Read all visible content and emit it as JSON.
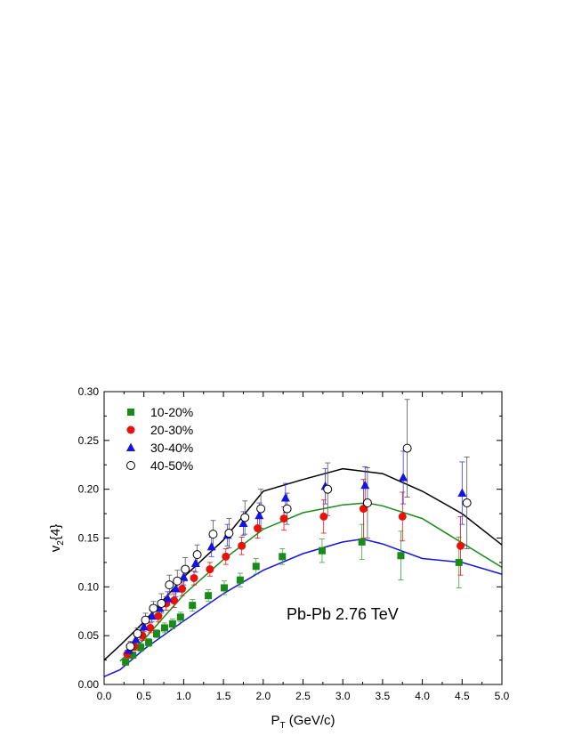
{
  "chart_data": {
    "type": "scatter",
    "title": "",
    "xlabel": {
      "main": "P",
      "sub": "T",
      "rest": " (GeV/c)"
    },
    "ylabel": {
      "main": "v",
      "sub": "2",
      "rest": "{4}"
    },
    "xlim": [
      0.0,
      5.0
    ],
    "ylim": [
      0.0,
      0.3
    ],
    "xticks": [
      "0.0",
      "0.5",
      "1.0",
      "1.5",
      "2.0",
      "2.5",
      "3.0",
      "3.5",
      "4.0",
      "4.5",
      "5.0"
    ],
    "yticks": [
      "0.00",
      "0.05",
      "0.10",
      "0.15",
      "0.20",
      "0.25",
      "0.30"
    ],
    "grid": false,
    "legend_position": "top-left",
    "annotation": "Pb-Pb   2.76 TeV",
    "series": [
      {
        "name": "10-20%",
        "marker": "square",
        "color": "#1a8a1a",
        "error_color": "#3aa63a",
        "points": [
          {
            "x": 0.27,
            "y": 0.023,
            "err": 0.003
          },
          {
            "x": 0.36,
            "y": 0.03,
            "err": 0.003
          },
          {
            "x": 0.46,
            "y": 0.038,
            "err": 0.004
          },
          {
            "x": 0.56,
            "y": 0.043,
            "err": 0.004
          },
          {
            "x": 0.66,
            "y": 0.052,
            "err": 0.004
          },
          {
            "x": 0.76,
            "y": 0.058,
            "err": 0.005
          },
          {
            "x": 0.86,
            "y": 0.062,
            "err": 0.005
          },
          {
            "x": 0.96,
            "y": 0.069,
            "err": 0.005
          },
          {
            "x": 1.11,
            "y": 0.081,
            "err": 0.006
          },
          {
            "x": 1.31,
            "y": 0.091,
            "err": 0.006
          },
          {
            "x": 1.51,
            "y": 0.099,
            "err": 0.007
          },
          {
            "x": 1.71,
            "y": 0.107,
            "err": 0.007
          },
          {
            "x": 1.91,
            "y": 0.121,
            "err": 0.008
          },
          {
            "x": 2.24,
            "y": 0.131,
            "err": 0.008
          },
          {
            "x": 2.74,
            "y": 0.137,
            "err": 0.012
          },
          {
            "x": 3.24,
            "y": 0.146,
            "err": 0.018
          },
          {
            "x": 3.73,
            "y": 0.132,
            "err": 0.025
          },
          {
            "x": 4.46,
            "y": 0.125,
            "err": 0.026
          }
        ]
      },
      {
        "name": "20-30%",
        "marker": "circle",
        "color": "#e8120c",
        "error_color": "#e8120c",
        "points": [
          {
            "x": 0.29,
            "y": 0.031,
            "err": 0.004
          },
          {
            "x": 0.38,
            "y": 0.039,
            "err": 0.004
          },
          {
            "x": 0.48,
            "y": 0.05,
            "err": 0.005
          },
          {
            "x": 0.58,
            "y": 0.058,
            "err": 0.005
          },
          {
            "x": 0.68,
            "y": 0.07,
            "err": 0.006
          },
          {
            "x": 0.78,
            "y": 0.083,
            "err": 0.007
          },
          {
            "x": 0.88,
            "y": 0.086,
            "err": 0.007
          },
          {
            "x": 0.98,
            "y": 0.098,
            "err": 0.007
          },
          {
            "x": 1.13,
            "y": 0.109,
            "err": 0.007
          },
          {
            "x": 1.33,
            "y": 0.118,
            "err": 0.007
          },
          {
            "x": 1.53,
            "y": 0.131,
            "err": 0.008
          },
          {
            "x": 1.73,
            "y": 0.142,
            "err": 0.009
          },
          {
            "x": 1.93,
            "y": 0.16,
            "err": 0.01
          },
          {
            "x": 2.26,
            "y": 0.17,
            "err": 0.012
          },
          {
            "x": 2.76,
            "y": 0.172,
            "err": 0.017
          },
          {
            "x": 3.26,
            "y": 0.18,
            "err": 0.03
          },
          {
            "x": 3.75,
            "y": 0.172,
            "err": 0.025
          },
          {
            "x": 4.48,
            "y": 0.142,
            "err": 0.03
          }
        ]
      },
      {
        "name": "30-40%",
        "marker": "triangle",
        "color": "#1414e6",
        "error_color": "#3a3ae6",
        "points": [
          {
            "x": 0.31,
            "y": 0.035,
            "err": 0.004
          },
          {
            "x": 0.4,
            "y": 0.046,
            "err": 0.005
          },
          {
            "x": 0.5,
            "y": 0.059,
            "err": 0.005
          },
          {
            "x": 0.6,
            "y": 0.07,
            "err": 0.006
          },
          {
            "x": 0.7,
            "y": 0.078,
            "err": 0.007
          },
          {
            "x": 0.8,
            "y": 0.088,
            "err": 0.007
          },
          {
            "x": 0.9,
            "y": 0.098,
            "err": 0.008
          },
          {
            "x": 1.0,
            "y": 0.11,
            "err": 0.008
          },
          {
            "x": 1.15,
            "y": 0.124,
            "err": 0.009
          },
          {
            "x": 1.35,
            "y": 0.141,
            "err": 0.01
          },
          {
            "x": 1.55,
            "y": 0.153,
            "err": 0.011
          },
          {
            "x": 1.75,
            "y": 0.165,
            "err": 0.012
          },
          {
            "x": 1.95,
            "y": 0.173,
            "err": 0.013
          },
          {
            "x": 2.28,
            "y": 0.191,
            "err": 0.015
          },
          {
            "x": 2.78,
            "y": 0.203,
            "err": 0.018
          },
          {
            "x": 3.28,
            "y": 0.204,
            "err": 0.019
          },
          {
            "x": 3.76,
            "y": 0.212,
            "err": 0.027
          },
          {
            "x": 4.5,
            "y": 0.196,
            "err": 0.032
          }
        ]
      },
      {
        "name": "40-50%",
        "marker": "open-circle",
        "color": "#000000",
        "error_color": "#555555",
        "points": [
          {
            "x": 0.33,
            "y": 0.039,
            "err": 0.005
          },
          {
            "x": 0.42,
            "y": 0.052,
            "err": 0.006
          },
          {
            "x": 0.52,
            "y": 0.066,
            "err": 0.007
          },
          {
            "x": 0.62,
            "y": 0.078,
            "err": 0.007
          },
          {
            "x": 0.72,
            "y": 0.083,
            "err": 0.01
          },
          {
            "x": 0.82,
            "y": 0.102,
            "err": 0.01
          },
          {
            "x": 0.92,
            "y": 0.106,
            "err": 0.011
          },
          {
            "x": 1.02,
            "y": 0.118,
            "err": 0.012
          },
          {
            "x": 1.17,
            "y": 0.133,
            "err": 0.01
          },
          {
            "x": 1.37,
            "y": 0.154,
            "err": 0.014
          },
          {
            "x": 1.57,
            "y": 0.155,
            "err": 0.015
          },
          {
            "x": 1.77,
            "y": 0.171,
            "err": 0.017
          },
          {
            "x": 1.97,
            "y": 0.18,
            "err": 0.02
          },
          {
            "x": 2.3,
            "y": 0.18,
            "err": 0.016
          },
          {
            "x": 2.81,
            "y": 0.2,
            "err": 0.027
          },
          {
            "x": 3.31,
            "y": 0.186,
            "err": 0.036
          },
          {
            "x": 3.81,
            "y": 0.242,
            "err": 0.05
          },
          {
            "x": 4.56,
            "y": 0.186,
            "err": 0.047
          }
        ]
      }
    ],
    "curves": [
      {
        "color": "#1414e6",
        "points": [
          [
            0.0,
            0.008
          ],
          [
            0.2,
            0.015
          ],
          [
            0.5,
            0.036
          ],
          [
            1.0,
            0.065
          ],
          [
            1.5,
            0.093
          ],
          [
            2.0,
            0.117
          ],
          [
            2.5,
            0.134
          ],
          [
            3.0,
            0.146
          ],
          [
            3.25,
            0.149
          ],
          [
            3.5,
            0.144
          ],
          [
            4.0,
            0.129
          ],
          [
            4.5,
            0.125
          ],
          [
            5.0,
            0.113
          ]
        ]
      },
      {
        "color": "#1a8a1a",
        "points": [
          [
            0.2,
            0.024
          ],
          [
            0.5,
            0.046
          ],
          [
            1.0,
            0.092
          ],
          [
            1.5,
            0.128
          ],
          [
            2.0,
            0.159
          ],
          [
            2.5,
            0.176
          ],
          [
            3.0,
            0.184
          ],
          [
            3.3,
            0.186
          ],
          [
            3.5,
            0.183
          ],
          [
            4.0,
            0.17
          ],
          [
            4.5,
            0.145
          ],
          [
            5.0,
            0.12
          ]
        ]
      },
      {
        "color": "#000000",
        "points": [
          [
            0.0,
            0.025
          ],
          [
            0.2,
            0.04
          ],
          [
            0.5,
            0.064
          ],
          [
            1.0,
            0.11
          ],
          [
            1.5,
            0.148
          ],
          [
            2.0,
            0.198
          ],
          [
            2.5,
            0.21
          ],
          [
            3.0,
            0.221
          ],
          [
            3.5,
            0.216
          ],
          [
            4.0,
            0.198
          ],
          [
            4.5,
            0.175
          ],
          [
            5.0,
            0.143
          ]
        ]
      }
    ]
  }
}
